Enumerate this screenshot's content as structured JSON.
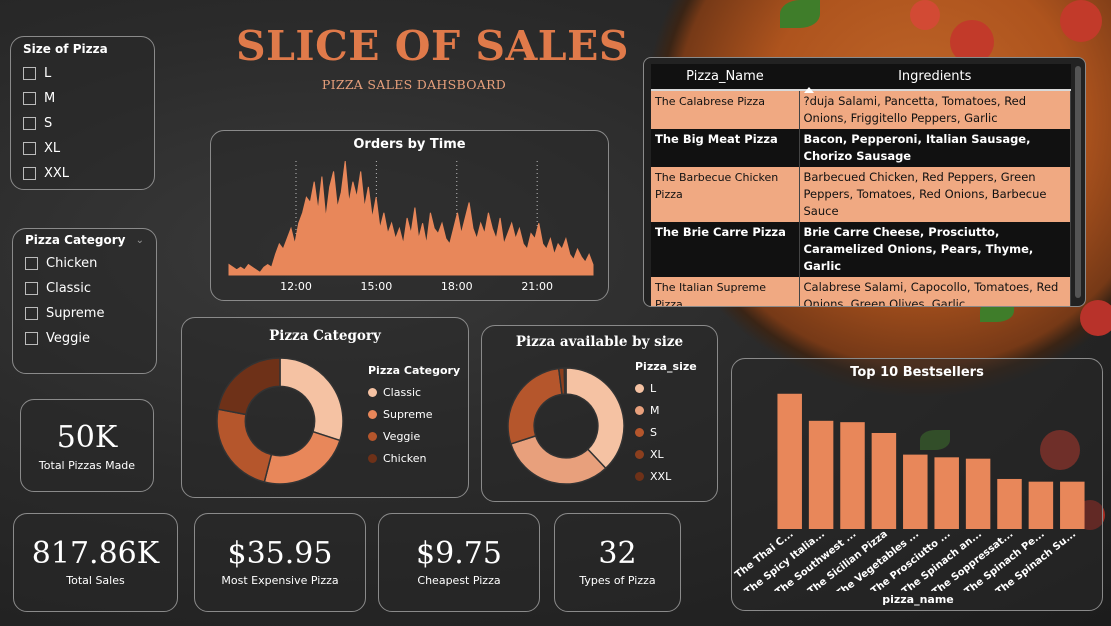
{
  "title": "SLICE OF SALES",
  "subtitle": "PIZZA SALES DAHSBOARD",
  "size_slicer": {
    "title": "Size of Pizza",
    "options": [
      "L",
      "M",
      "S",
      "XL",
      "XXL"
    ]
  },
  "category_slicer": {
    "title": "Pizza Category",
    "options": [
      "Chicken",
      "Classic",
      "Supreme",
      "Veggie"
    ]
  },
  "kpis": {
    "total_pizzas": {
      "value": "50K",
      "label": "Total Pizzas Made"
    },
    "total_sales": {
      "value": "817.86K",
      "label": "Total Sales"
    },
    "most_expensive": {
      "value": "$35.95",
      "label": "Most Expensive Pizza"
    },
    "cheapest": {
      "value": "$9.75",
      "label": "Cheapest Pizza"
    },
    "types": {
      "value": "32",
      "label": "Types of Pizza"
    }
  },
  "ingredients_table": {
    "columns": [
      "Pizza_Name",
      "Ingredients"
    ],
    "rows": [
      {
        "name": "The Calabrese Pizza",
        "ingredients": "?duja Salami, Pancetta, Tomatoes, Red Onions, Friggitello Peppers, Garlic"
      },
      {
        "name": "The Big Meat Pizza",
        "ingredients": "Bacon, Pepperoni, Italian Sausage, Chorizo Sausage"
      },
      {
        "name": "The Barbecue Chicken Pizza",
        "ingredients": "Barbecued Chicken, Red Peppers, Green Peppers, Tomatoes, Red Onions, Barbecue Sauce"
      },
      {
        "name": "The Brie Carre Pizza",
        "ingredients": "Brie Carre Cheese, Prosciutto, Caramelized Onions, Pears, Thyme, Garlic"
      },
      {
        "name": "The Italian Supreme Pizza",
        "ingredients": "Calabrese Salami, Capocollo, Tomatoes, Red Onions, Green Olives, Garlic"
      }
    ]
  },
  "colors": {
    "accent": "#e07a4a",
    "peach": "#f5c2a3",
    "orange": "#e8875a",
    "rust": "#b5562c",
    "dark_rust": "#6e3118",
    "panel_border": "#8a8a8a"
  },
  "chart_data": [
    {
      "type": "area",
      "title": "Orders by Time",
      "x_ticks": [
        "12:00",
        "15:00",
        "18:00",
        "21:00"
      ],
      "xlim": [
        "09:30",
        "23:05"
      ],
      "series": [
        {
          "values": [
            4,
            3,
            2,
            3,
            2,
            4,
            3,
            2,
            1,
            3,
            4,
            3,
            8,
            12,
            10,
            14,
            18,
            12,
            20,
            24,
            30,
            28,
            36,
            25,
            38,
            22,
            34,
            40,
            26,
            32,
            44,
            28,
            36,
            30,
            40,
            26,
            34,
            22,
            30,
            18,
            24,
            16,
            20,
            14,
            18,
            12,
            22,
            16,
            26,
            14,
            20,
            12,
            24,
            18,
            16,
            20,
            14,
            12,
            18,
            24,
            16,
            22,
            28,
            18,
            14,
            20,
            16,
            24,
            18,
            14,
            22,
            12,
            16,
            20,
            14,
            18,
            12,
            10,
            16,
            14,
            20,
            12,
            10,
            14,
            8,
            12,
            10,
            14,
            8,
            6,
            10,
            7,
            5,
            8,
            4
          ]
        }
      ]
    },
    {
      "type": "pie",
      "title": "Pizza Category",
      "legend_title": "Pizza Category",
      "categories": [
        "Classic",
        "Supreme",
        "Veggie",
        "Chicken"
      ],
      "values": [
        30,
        24,
        24,
        22
      ],
      "colors": [
        "#f5c2a3",
        "#e8875a",
        "#b5562c",
        "#6e3118"
      ],
      "hole": 0.55
    },
    {
      "type": "pie",
      "title": "Pizza available by size",
      "legend_title": "Pizza_size",
      "categories": [
        "L",
        "M",
        "S",
        "XL",
        "XXL"
      ],
      "values": [
        38,
        32,
        28,
        1.5,
        0.5
      ],
      "colors": [
        "#f5c2a3",
        "#e8a07c",
        "#b5562c",
        "#8c3f1e",
        "#6e3118"
      ],
      "hole": 0.55
    },
    {
      "type": "bar",
      "title": "Top 10 Bestsellers",
      "xlabel": "pizza_name",
      "categories": [
        "The Thai C...",
        "The Spicy Italia...",
        "The Southwest ...",
        "The Sicilian Pizza",
        "The Vegetables ...",
        "The Prosciutto ...",
        "The Spinach an...",
        "The Soppressat...",
        "The Spinach Pe...",
        "The Spinach Su..."
      ],
      "values": [
        100,
        80,
        79,
        71,
        55,
        53,
        52,
        37,
        35,
        35
      ],
      "ylim": [
        0,
        105
      ],
      "color": "#e8875a"
    }
  ]
}
